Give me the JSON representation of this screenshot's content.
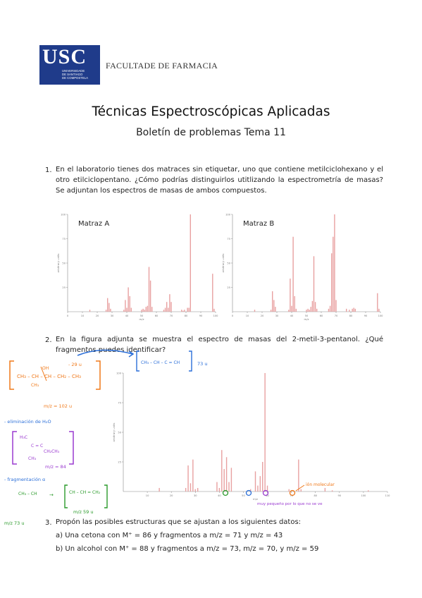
{
  "header": {
    "logo_letters": "USC",
    "logo_sub": "UNIVERSIDADE\nDE SANTIAGO\nDE COMPOSTELA",
    "faculty": "FACULTADE DE FARMACIA"
  },
  "title": "Técnicas Espectroscópicas Aplicadas",
  "subtitle": "Boletín de problemas Tema 11",
  "q1": {
    "number": "1.",
    "text": "En el laboratorio tienes dos matraces sin etiquetar, uno que contiene metilciclohexano y el otro etilciclopentano. ¿Cómo podrías distinguirlos utitlizando la espectrometría de masas? Se adjuntan los espectros de masas de ambos compuestos."
  },
  "q2": {
    "number": "2.",
    "text": "En la figura adjunta se muestra el espectro de masas del 2-metil-3-pentanol. ¿Qué fragmentos puedes identificar?"
  },
  "q3": {
    "number": "3.",
    "text": "Propón las posibles estructuras que se ajustan a los siguientes datos:",
    "a": "a) Una cetona con M⁺ = 86 y fragmentos a m/z = 71 y m/z = 43",
    "b": "b) Un alcohol con M⁺ = 88 y fragmentos a m/z = 73, m/z = 70, y m/z = 59"
  },
  "annotations": {
    "mz102": "m/z = 102 u",
    "minus29": "- 29 u",
    "u73": "73 u",
    "elim": "- eliminación de H₂O",
    "mz84": "m/z = 84",
    "frag": "- fragmentación α",
    "mz59": "m/z 59 u",
    "mz73": "m/z 73 u",
    "note_peak": "ión molecular",
    "note_small": "muy pequeño por lo que no se ve"
  },
  "colors": {
    "logo": "#1f3b8a",
    "spectrum": "#e8a0a0",
    "hand_orange": "#f07818",
    "hand_blue": "#2a6ed8",
    "hand_purple": "#9a3ad0",
    "hand_green": "#2a9a2a"
  },
  "chart_data": [
    {
      "type": "bar",
      "title": "Matraz A",
      "xlabel": "m/z",
      "ylabel": "arbitrary units",
      "xlim": [
        0,
        100
      ],
      "ylim": [
        0,
        100
      ],
      "x_ticks": [
        "0",
        "10",
        "20",
        "30",
        "40",
        "50",
        "60",
        "70",
        "80",
        "90",
        "100"
      ],
      "y_ticks": [
        "25",
        "50",
        "75",
        "100"
      ],
      "x": [
        15,
        26,
        27,
        28,
        29,
        38,
        39,
        40,
        41,
        42,
        43,
        50,
        51,
        52,
        53,
        54,
        55,
        56,
        57,
        65,
        66,
        67,
        68,
        69,
        70,
        77,
        78,
        79,
        81,
        82,
        83,
        98,
        99
      ],
      "values": [
        2,
        2,
        14,
        9,
        3,
        2,
        12,
        4,
        25,
        16,
        4,
        2,
        3,
        2,
        5,
        6,
        46,
        32,
        5,
        2,
        4,
        10,
        4,
        18,
        10,
        2,
        1,
        2,
        4,
        4,
        100,
        39,
        3
      ]
    },
    {
      "type": "bar",
      "title": "Matraz B",
      "xlabel": "m/z",
      "ylabel": "arbitrary units",
      "xlim": [
        0,
        100
      ],
      "ylim": [
        0,
        100
      ],
      "x_ticks": [
        "0",
        "10",
        "20",
        "30",
        "40",
        "50",
        "60",
        "70",
        "80",
        "90",
        "100"
      ],
      "y_ticks": [
        "25",
        "50",
        "75",
        "100"
      ],
      "x": [
        15,
        26,
        27,
        28,
        29,
        38,
        39,
        40,
        41,
        42,
        43,
        50,
        51,
        52,
        53,
        54,
        55,
        56,
        57,
        65,
        66,
        67,
        68,
        69,
        70,
        77,
        79,
        81,
        82,
        83,
        98,
        99
      ],
      "values": [
        2,
        2,
        21,
        12,
        5,
        2,
        34,
        6,
        77,
        16,
        3,
        2,
        3,
        2,
        5,
        11,
        57,
        10,
        3,
        3,
        6,
        60,
        77,
        100,
        12,
        3,
        2,
        3,
        4,
        3,
        19,
        3
      ]
    },
    {
      "type": "bar",
      "title": "",
      "xlabel": "m/z",
      "ylabel": "arbitrary units",
      "xlim": [
        0,
        110
      ],
      "ylim": [
        0,
        100
      ],
      "x_ticks": [
        "10",
        "20",
        "30",
        "40",
        "50",
        "60",
        "70",
        "80",
        "90",
        "100",
        "110"
      ],
      "y_ticks": [
        "25",
        "50",
        "75",
        "100"
      ],
      "x": [
        15,
        26,
        27,
        28,
        29,
        30,
        31,
        39,
        40,
        41,
        42,
        43,
        44,
        45,
        53,
        55,
        56,
        57,
        58,
        59,
        60,
        69,
        73,
        74,
        84,
        87,
        102
      ],
      "values": [
        3,
        3,
        22,
        7,
        27,
        2,
        3,
        8,
        3,
        35,
        19,
        29,
        8,
        20,
        2,
        17,
        5,
        13,
        25,
        100,
        5,
        2,
        27,
        2,
        3,
        1,
        1
      ]
    }
  ]
}
